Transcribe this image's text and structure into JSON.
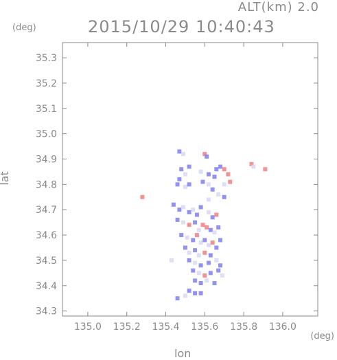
{
  "header": {
    "alt_label": "ALT(km) 2.0",
    "timestamp": "2015/10/29 10:40:43"
  },
  "chart_data": {
    "type": "scatter",
    "title": "2015/10/29 10:40:43",
    "subtitle": "ALT(km) 2.0",
    "xlabel": "lon",
    "ylabel": "lat",
    "x_unit": "(deg)",
    "y_unit": "(deg)",
    "xlim": [
      134.87,
      136.18
    ],
    "ylim": [
      34.28,
      35.36
    ],
    "x_ticks": [
      "135.0",
      "135.2",
      "135.4",
      "135.6",
      "135.8",
      "136.0"
    ],
    "y_ticks": [
      "34.3",
      "34.4",
      "34.5",
      "34.6",
      "34.7",
      "34.8",
      "34.9",
      "35.0",
      "35.1",
      "35.2",
      "35.3"
    ],
    "grid": false,
    "colors": {
      "positive": "#f08080",
      "negative": "#7f7ff0",
      "neutral": "#d8d8f4",
      "axis": "#8a8a8a"
    },
    "series": [
      {
        "values": [
          [
            135.47,
            34.93,
            1
          ],
          [
            135.49,
            34.92,
            0
          ],
          [
            135.6,
            34.92,
            -1
          ],
          [
            135.61,
            34.91,
            1
          ],
          [
            135.48,
            34.86,
            1
          ],
          [
            135.52,
            34.87,
            1
          ],
          [
            135.5,
            34.84,
            0
          ],
          [
            135.47,
            34.82,
            1
          ],
          [
            135.46,
            34.8,
            1
          ],
          [
            135.5,
            34.79,
            0
          ],
          [
            135.52,
            34.8,
            1
          ],
          [
            135.58,
            34.85,
            0
          ],
          [
            135.62,
            34.84,
            1
          ],
          [
            135.66,
            34.86,
            1
          ],
          [
            135.68,
            34.87,
            1
          ],
          [
            135.7,
            34.86,
            -1
          ],
          [
            135.72,
            34.84,
            -1
          ],
          [
            135.65,
            34.83,
            1
          ],
          [
            135.62,
            34.8,
            0
          ],
          [
            135.64,
            34.78,
            1
          ],
          [
            135.7,
            34.8,
            0
          ],
          [
            135.73,
            34.81,
            -1
          ],
          [
            135.67,
            34.76,
            0
          ],
          [
            135.7,
            34.75,
            1
          ],
          [
            135.84,
            34.88,
            -1
          ],
          [
            135.85,
            34.87,
            0
          ],
          [
            135.91,
            34.86,
            -1
          ],
          [
            135.59,
            34.81,
            1
          ],
          [
            135.28,
            34.75,
            -1
          ],
          [
            135.44,
            34.72,
            1
          ],
          [
            135.47,
            34.7,
            1
          ],
          [
            135.49,
            34.71,
            0
          ],
          [
            135.52,
            34.69,
            1
          ],
          [
            135.54,
            34.7,
            0
          ],
          [
            135.56,
            34.68,
            1
          ],
          [
            135.58,
            34.71,
            1
          ],
          [
            135.62,
            34.69,
            0
          ],
          [
            135.64,
            34.67,
            1
          ],
          [
            135.66,
            34.68,
            -1
          ],
          [
            135.46,
            34.66,
            1
          ],
          [
            135.49,
            34.65,
            0
          ],
          [
            135.52,
            34.64,
            -1
          ],
          [
            135.55,
            34.65,
            1
          ],
          [
            135.57,
            34.62,
            0
          ],
          [
            135.59,
            34.64,
            -1
          ],
          [
            135.61,
            34.63,
            -1
          ],
          [
            135.63,
            34.62,
            1
          ],
          [
            135.65,
            34.61,
            0
          ],
          [
            135.67,
            34.63,
            1
          ],
          [
            135.48,
            34.6,
            1
          ],
          [
            135.51,
            34.59,
            0
          ],
          [
            135.54,
            34.58,
            1
          ],
          [
            135.56,
            34.6,
            -1
          ],
          [
            135.58,
            34.57,
            0
          ],
          [
            135.6,
            34.58,
            1
          ],
          [
            135.62,
            34.56,
            0
          ],
          [
            135.64,
            34.57,
            -1
          ],
          [
            135.66,
            34.55,
            1
          ],
          [
            135.5,
            34.55,
            1
          ],
          [
            135.52,
            34.53,
            0
          ],
          [
            135.55,
            34.54,
            1
          ],
          [
            135.57,
            34.52,
            0
          ],
          [
            135.6,
            34.53,
            -1
          ],
          [
            135.63,
            34.52,
            1
          ],
          [
            135.52,
            34.5,
            1
          ],
          [
            135.55,
            34.49,
            0
          ],
          [
            135.58,
            34.48,
            1
          ],
          [
            135.62,
            34.49,
            1
          ],
          [
            135.66,
            34.5,
            0
          ],
          [
            135.68,
            34.48,
            1
          ],
          [
            135.54,
            34.46,
            1
          ],
          [
            135.57,
            34.45,
            0
          ],
          [
            135.6,
            34.44,
            -1
          ],
          [
            135.63,
            34.45,
            1
          ],
          [
            135.67,
            34.46,
            1
          ],
          [
            135.69,
            34.44,
            0
          ],
          [
            135.55,
            34.42,
            1
          ],
          [
            135.58,
            34.41,
            1
          ],
          [
            135.61,
            34.42,
            0
          ],
          [
            135.65,
            34.41,
            1
          ],
          [
            135.52,
            34.38,
            1
          ],
          [
            135.55,
            34.37,
            1
          ],
          [
            135.58,
            34.37,
            1
          ],
          [
            135.5,
            34.36,
            0
          ],
          [
            135.46,
            34.35,
            1
          ],
          [
            135.43,
            34.5,
            0
          ],
          [
            135.68,
            34.58,
            1
          ],
          [
            135.62,
            34.74,
            0
          ]
        ]
      }
    ]
  }
}
